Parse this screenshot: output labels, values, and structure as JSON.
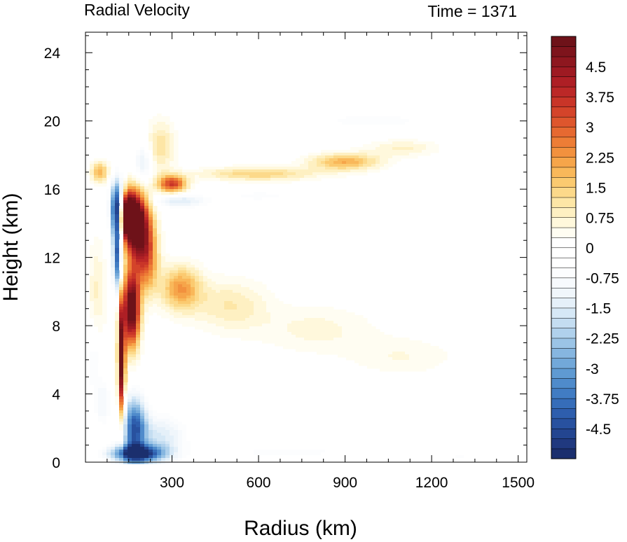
{
  "chart_data": {
    "type": "heatmap",
    "title_left": "Radial Velocity",
    "title_right": "Time = 1371",
    "xlabel": "Radius (km)",
    "ylabel": "Height (km)",
    "xlim": [
      0,
      1530
    ],
    "ylim": [
      0,
      25.2
    ],
    "xticks": [
      300,
      600,
      900,
      1200,
      1500
    ],
    "yticks": [
      0,
      4,
      8,
      12,
      16,
      20,
      24
    ],
    "colorbar": {
      "levels": [
        -5.25,
        -5.0,
        -4.75,
        -4.5,
        -4.25,
        -4.0,
        -3.75,
        -3.5,
        -3.25,
        -3.0,
        -2.75,
        -2.5,
        -2.25,
        -2.0,
        -1.75,
        -1.5,
        -1.25,
        -1.0,
        -0.75,
        -0.5,
        -0.25,
        0,
        0.25,
        0.5,
        0.75,
        1.0,
        1.25,
        1.5,
        1.75,
        2.0,
        2.25,
        2.5,
        2.75,
        3.0,
        3.25,
        3.5,
        3.75,
        4.0,
        4.25,
        4.5,
        4.75,
        5.0,
        5.25
      ],
      "tick_labels": [
        "4.5",
        "3.75",
        "3",
        "2.25",
        "1.5",
        "0.75",
        "0",
        "-0.75",
        "-1.5",
        "-2.25",
        "-3",
        "-3.75",
        "-4.5"
      ],
      "tick_values": [
        4.5,
        3.75,
        3.0,
        2.25,
        1.5,
        0.75,
        0,
        -0.75,
        -1.5,
        -2.25,
        -3.0,
        -3.75,
        -4.5
      ],
      "colors": [
        "#1b2f6e",
        "#20397f",
        "#234590",
        "#28519f",
        "#2e5ead",
        "#366db9",
        "#417cc3",
        "#4f8bcb",
        "#5f9ad2",
        "#72a8d9",
        "#86b6e0",
        "#9bc4e6",
        "#b0d1ec",
        "#c4ddf1",
        "#d6e8f6",
        "#e5f0f9",
        "#f0f6fb",
        "#f7fafd",
        "#fcfdfe",
        "#ffffff",
        "#ffffff",
        "#ffffff",
        "#fffdf2",
        "#fff8dc",
        "#fef0c2",
        "#fde6a6",
        "#fcd98a",
        "#fbca70",
        "#f9b85a",
        "#f6a54a",
        "#f2913e",
        "#ed7d36",
        "#e66931",
        "#de562d",
        "#d4442a",
        "#c93528",
        "#bc2827",
        "#ae1f25",
        "#9e1a22",
        "#8e171f",
        "#7e141c",
        "#6e1219"
      ],
      "min": -5.25,
      "max": 5.25
    },
    "features": [
      {
        "r": 175,
        "z": 14.0,
        "sr": 45,
        "sz": 1.8,
        "v": 6.0
      },
      {
        "r": 160,
        "z": 9.0,
        "sr": 28,
        "sz": 2.2,
        "v": 6.0
      },
      {
        "r": 125,
        "z": 6.0,
        "sr": 12,
        "sz": 3.5,
        "v": 5.5
      },
      {
        "r": 145,
        "z": 14.5,
        "sr": 30,
        "sz": 1.2,
        "v": 6.0
      },
      {
        "r": 210,
        "z": 12.0,
        "sr": 40,
        "sz": 2.0,
        "v": 3.0
      },
      {
        "r": 110,
        "z": 14.8,
        "sr": 22,
        "sz": 1.6,
        "v": -6.0
      },
      {
        "r": 110,
        "z": 12.0,
        "sr": 15,
        "sz": 2.0,
        "v": -4.0
      },
      {
        "r": 170,
        "z": 2.0,
        "sr": 40,
        "sz": 1.8,
        "v": -4.0
      },
      {
        "r": 180,
        "z": 0.5,
        "sr": 90,
        "sz": 0.5,
        "v": -5.0
      },
      {
        "r": 260,
        "z": 1.5,
        "sr": 90,
        "sz": 1.3,
        "v": -1.5
      },
      {
        "r": 60,
        "z": 3.5,
        "sr": 30,
        "sz": 1.5,
        "v": -1.0
      },
      {
        "r": 330,
        "z": 10.2,
        "sr": 70,
        "sz": 1.3,
        "v": 2.2
      },
      {
        "r": 500,
        "z": 9.2,
        "sr": 130,
        "sz": 1.5,
        "v": 1.0
      },
      {
        "r": 800,
        "z": 7.8,
        "sr": 200,
        "sz": 1.4,
        "v": 0.6
      },
      {
        "r": 1100,
        "z": 6.2,
        "sr": 180,
        "sz": 1.1,
        "v": 0.5
      },
      {
        "r": 300,
        "z": 16.3,
        "sr": 50,
        "sz": 0.5,
        "v": 3.5
      },
      {
        "r": 600,
        "z": 16.9,
        "sr": 200,
        "sz": 0.4,
        "v": 1.5
      },
      {
        "r": 900,
        "z": 17.6,
        "sr": 120,
        "sz": 0.5,
        "v": 2.0
      },
      {
        "r": 1100,
        "z": 18.4,
        "sr": 120,
        "sz": 0.5,
        "v": 0.8
      },
      {
        "r": 330,
        "z": 15.3,
        "sr": 90,
        "sz": 0.4,
        "v": -1.5
      },
      {
        "r": 600,
        "z": 15.6,
        "sr": 150,
        "sz": 0.4,
        "v": -0.6
      },
      {
        "r": 1000,
        "z": 20.0,
        "sr": 220,
        "sz": 0.5,
        "v": -0.7
      },
      {
        "r": 260,
        "z": 18.5,
        "sr": 50,
        "sz": 1.5,
        "v": 1.2
      },
      {
        "r": 200,
        "z": 17.5,
        "sr": 30,
        "sz": 1.2,
        "v": -1.5
      },
      {
        "r": 50,
        "z": 17.0,
        "sr": 30,
        "sz": 0.6,
        "v": 2.0
      },
      {
        "r": 40,
        "z": 10.0,
        "sr": 30,
        "sz": 3.0,
        "v": 0.8
      },
      {
        "r": 30,
        "z": 6.0,
        "sr": 20,
        "sz": 2.0,
        "v": -0.8
      },
      {
        "r": 700,
        "z": 0.6,
        "sr": 300,
        "sz": 0.5,
        "v": -0.6
      },
      {
        "r": 1300,
        "z": 0.3,
        "sr": 200,
        "sz": 0.3,
        "v": -0.5
      }
    ]
  }
}
